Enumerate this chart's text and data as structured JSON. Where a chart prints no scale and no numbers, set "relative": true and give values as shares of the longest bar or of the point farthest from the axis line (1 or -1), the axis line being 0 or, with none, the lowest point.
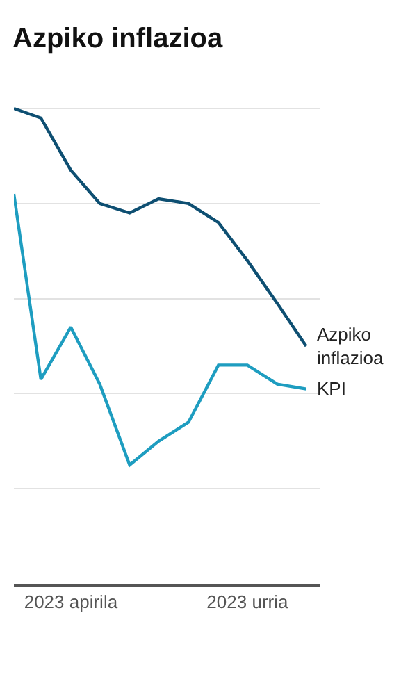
{
  "chart_data": {
    "type": "line",
    "title": "Azpiko inflazioa",
    "relative": true,
    "x": [
      "2023-02",
      "2023-03",
      "2023-04",
      "2023-05",
      "2023-06",
      "2023-07",
      "2023-08",
      "2023-09",
      "2023-10",
      "2023-11",
      "2023-12"
    ],
    "series": [
      {
        "name": "Azpiko inflazioa",
        "color": "#0e4f72",
        "values": [
          1.0,
          0.98,
          0.87,
          0.8,
          0.78,
          0.81,
          0.8,
          0.76,
          0.68,
          0.59,
          0.5
        ]
      },
      {
        "name": "KPI",
        "color": "#1e9dc0",
        "values": [
          0.82,
          0.43,
          0.54,
          0.42,
          0.25,
          0.3,
          0.34,
          0.46,
          0.46,
          0.42,
          0.41
        ]
      }
    ],
    "xlim": [
      "2023-02",
      "2023-12-15"
    ],
    "xticks": [
      {
        "value": "2023-04",
        "label": "2023 apirila"
      },
      {
        "value": "2023-10",
        "label": "2023 urria"
      }
    ],
    "grid": "y",
    "legend": false,
    "marker": "none",
    "line_style": "solid"
  }
}
